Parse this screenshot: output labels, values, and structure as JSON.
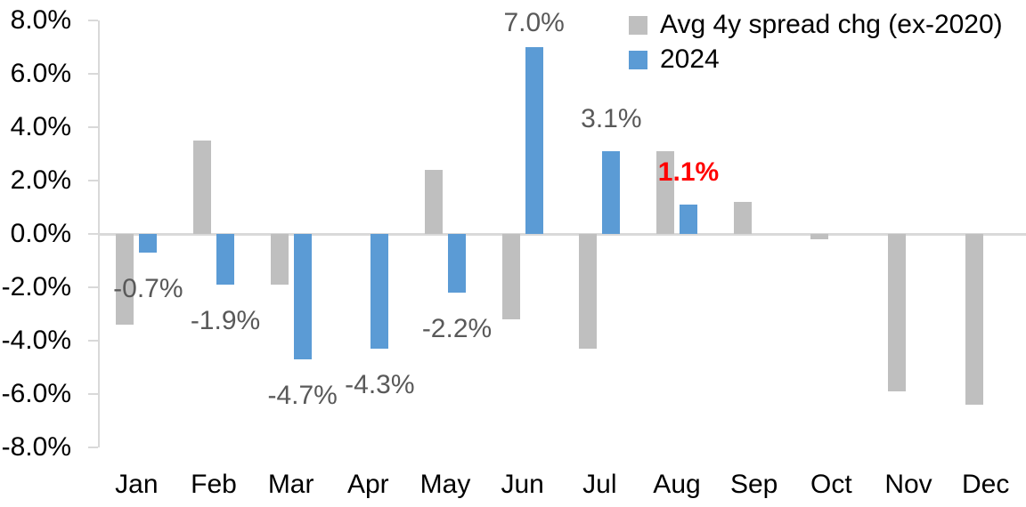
{
  "chart_data": {
    "type": "bar",
    "title": "",
    "xlabel": "",
    "ylabel": "",
    "categories": [
      "Jan",
      "Feb",
      "Mar",
      "Apr",
      "May",
      "Jun",
      "Jul",
      "Aug",
      "Sep",
      "Oct",
      "Nov",
      "Dec"
    ],
    "series": [
      {
        "name": "Avg 4y spread chg (ex-2020)",
        "color": "#BFBFBF",
        "values": [
          -3.4,
          3.5,
          -1.9,
          0.0,
          2.4,
          -3.2,
          -4.3,
          3.1,
          1.2,
          -0.2,
          -5.9,
          -6.4
        ]
      },
      {
        "name": "2024",
        "color": "#5B9BD5",
        "values": [
          -0.7,
          -1.9,
          -4.7,
          -4.3,
          -2.2,
          7.0,
          3.1,
          1.1,
          null,
          null,
          null,
          null
        ],
        "data_labels": [
          {
            "text": "-0.7%",
            "color": "#595959",
            "bold": false
          },
          {
            "text": "-1.9%",
            "color": "#595959",
            "bold": false
          },
          {
            "text": "-4.7%",
            "color": "#595959",
            "bold": false
          },
          {
            "text": "-4.3%",
            "color": "#595959",
            "bold": false
          },
          {
            "text": "-2.2%",
            "color": "#595959",
            "bold": false
          },
          {
            "text": "7.0%",
            "color": "#595959",
            "bold": false
          },
          {
            "text": "3.1%",
            "color": "#595959",
            "bold": false
          },
          {
            "text": "1.1%",
            "color": "#FF0000",
            "bold": true
          },
          null,
          null,
          null,
          null
        ]
      }
    ],
    "ylim": [
      -8,
      8
    ],
    "ytick_step": 2,
    "ytick_labels": [
      "8.0%",
      "6.0%",
      "4.0%",
      "2.0%",
      "0.0%",
      "-2.0%",
      "-4.0%",
      "-6.0%",
      "-8.0%"
    ],
    "grid": "zero-baseline-only",
    "legend_position": "top-right",
    "axis_color": "#D9D9D9",
    "label_color": "#595959",
    "background": "#FFFFFF"
  }
}
